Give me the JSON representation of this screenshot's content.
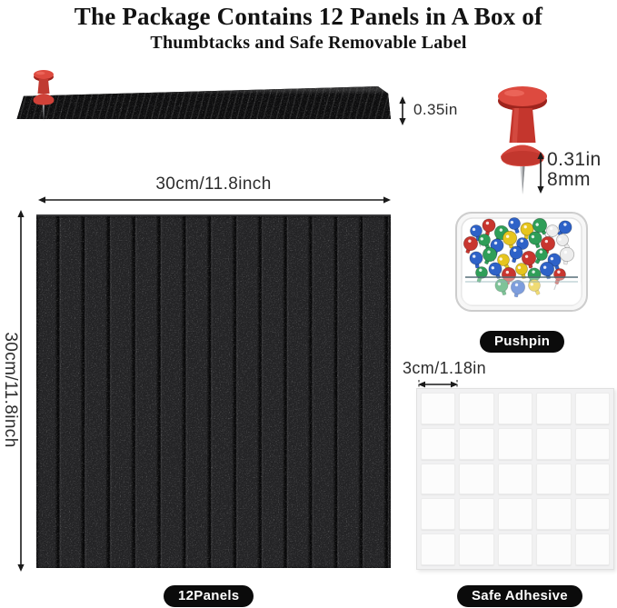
{
  "title": {
    "line1": "The Package Contains 12 Panels in A Box of",
    "line2": "Thumbtacks and Safe Removable Label"
  },
  "strip": {
    "thickness_label": "0.35in"
  },
  "pushpin_detail": {
    "needle_length_inch": "0.31in",
    "needle_length_mm": "8mm"
  },
  "pushpin_box": {
    "badge": "Pushpin",
    "pin_colors": [
      "#2e62c8",
      "#c8362f",
      "#2f9e58",
      "#e6c51f",
      "#ededed"
    ]
  },
  "panel": {
    "width_label": "30cm/11.8inch",
    "height_label": "30cm/11.8inch",
    "badge": "12Panels",
    "color": "#222224"
  },
  "adhesive": {
    "size_label": "3cm/1.18in",
    "badge": "Safe Adhesive",
    "rows": 5,
    "cols": 5
  },
  "colors": {
    "accent_red": "#d8453c",
    "badge_black": "#0b0b0b",
    "ink": "#121212"
  }
}
